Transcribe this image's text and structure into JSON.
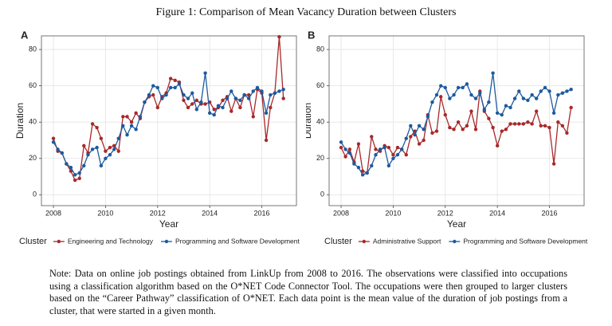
{
  "title": "Figure 1: Comparison of Mean Vacancy Duration between Clusters",
  "note": "Note: Data on online job postings obtained from LinkUp from 2008 to 2016. The observations were classified into occupations using a classification algorithm based on the O*NET Code Connector Tool. The occupations were then grouped to larger clusters based on the “Career Pathway” classification of O*NET. Each data point is the mean value of the duration of job postings from a cluster, that were started in a given month.",
  "chart_data": [
    {
      "type": "line",
      "label": "A",
      "xlabel": "Year",
      "ylabel": "Duration",
      "legend_title": "Cluster",
      "x": [
        2008,
        2008.17,
        2008.33,
        2008.5,
        2008.67,
        2008.83,
        2009,
        2009.17,
        2009.33,
        2009.5,
        2009.67,
        2009.83,
        2010,
        2010.17,
        2010.33,
        2010.5,
        2010.67,
        2010.83,
        2011,
        2011.17,
        2011.33,
        2011.5,
        2011.67,
        2011.83,
        2012,
        2012.17,
        2012.33,
        2012.5,
        2012.67,
        2012.83,
        2013,
        2013.17,
        2013.33,
        2013.5,
        2013.67,
        2013.83,
        2014,
        2014.17,
        2014.33,
        2014.5,
        2014.67,
        2014.83,
        2015,
        2015.17,
        2015.33,
        2015.5,
        2015.67,
        2015.83,
        2016,
        2016.17,
        2016.33,
        2016.5,
        2016.67,
        2016.83
      ],
      "series": [
        {
          "name": "Engineering and Technology",
          "color": "#a8282a",
          "values": [
            31,
            24,
            23,
            17,
            13,
            8,
            9,
            27,
            23,
            39,
            37,
            31,
            24,
            26,
            27,
            24,
            43,
            43,
            40,
            45,
            42,
            51,
            54,
            55,
            48,
            54,
            56,
            64,
            63,
            62,
            52,
            48,
            50,
            52,
            50,
            50,
            51,
            47,
            48,
            52,
            54,
            46,
            53,
            48,
            55,
            55,
            43,
            58,
            56,
            30,
            48,
            56,
            87,
            53
          ]
        },
        {
          "name": "Programming and Software Development",
          "color": "#1c5a9e",
          "values": [
            29,
            25,
            23,
            17,
            15,
            11,
            12,
            16,
            22,
            25,
            26,
            16,
            20,
            22,
            25,
            31,
            38,
            33,
            38,
            36,
            43,
            51,
            55,
            60,
            59,
            53,
            55,
            59,
            59,
            61,
            55,
            53,
            56,
            47,
            51,
            67,
            45,
            44,
            49,
            48,
            53,
            57,
            53,
            52,
            55,
            53,
            57,
            59,
            57,
            45,
            55,
            56,
            57,
            58
          ]
        }
      ],
      "xlim": [
        2007.54,
        2017.33
      ],
      "xticks": [
        2008,
        2010,
        2012,
        2014,
        2016
      ],
      "ylim": [
        -6,
        87.5
      ],
      "yticks": [
        0,
        20,
        40,
        60,
        80
      ],
      "grid": true
    },
    {
      "type": "line",
      "label": "B",
      "xlabel": "Year",
      "ylabel": "Duration",
      "legend_title": "Cluster",
      "x": [
        2008,
        2008.17,
        2008.33,
        2008.5,
        2008.67,
        2008.83,
        2009,
        2009.17,
        2009.33,
        2009.5,
        2009.67,
        2009.83,
        2010,
        2010.17,
        2010.33,
        2010.5,
        2010.67,
        2010.83,
        2011,
        2011.17,
        2011.33,
        2011.5,
        2011.67,
        2011.83,
        2012,
        2012.17,
        2012.33,
        2012.5,
        2012.67,
        2012.83,
        2013,
        2013.17,
        2013.33,
        2013.5,
        2013.67,
        2013.83,
        2014,
        2014.17,
        2014.33,
        2014.5,
        2014.67,
        2014.83,
        2015,
        2015.17,
        2015.33,
        2015.5,
        2015.67,
        2015.83,
        2016,
        2016.17,
        2016.33,
        2016.5,
        2016.67,
        2016.83
      ],
      "series": [
        {
          "name": "Administrative Support",
          "color": "#a8282a",
          "values": [
            26,
            21,
            25,
            18,
            28,
            13,
            12,
            32,
            25,
            24,
            27,
            26,
            22,
            26,
            25,
            22,
            32,
            35,
            28,
            30,
            44,
            34,
            35,
            54,
            44,
            37,
            36,
            40,
            36,
            38,
            46,
            36,
            57,
            46,
            42,
            37,
            27,
            35,
            36,
            39,
            39,
            39,
            39,
            40,
            39,
            46,
            38,
            38,
            37,
            17,
            40,
            38,
            34,
            48
          ]
        },
        {
          "name": "Programming and Software Development",
          "color": "#1c5a9e",
          "values": [
            29,
            25,
            23,
            17,
            15,
            11,
            12,
            16,
            22,
            25,
            26,
            16,
            20,
            22,
            25,
            31,
            38,
            33,
            38,
            36,
            43,
            51,
            55,
            60,
            59,
            53,
            55,
            59,
            59,
            61,
            55,
            53,
            56,
            47,
            51,
            67,
            45,
            44,
            49,
            48,
            53,
            57,
            53,
            52,
            55,
            53,
            57,
            59,
            57,
            45,
            55,
            56,
            57,
            58
          ]
        }
      ],
      "xlim": [
        2007.54,
        2017.33
      ],
      "xticks": [
        2008,
        2010,
        2012,
        2014,
        2016
      ],
      "ylim": [
        -6,
        87.5
      ],
      "yticks": [
        0,
        20,
        40,
        60,
        80
      ],
      "grid": true
    }
  ]
}
